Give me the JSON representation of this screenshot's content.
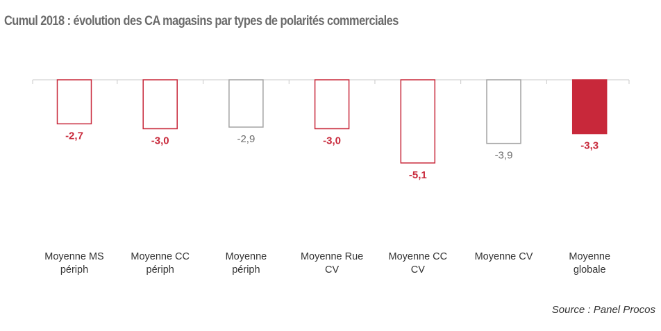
{
  "chart_data": {
    "type": "bar",
    "title": "Cumul 2018 : évolution des CA magasins par types de polarités commerciales",
    "categories": [
      [
        "Moyenne MS",
        "périph"
      ],
      [
        "Moyenne CC",
        "périph"
      ],
      [
        "Moyenne",
        "périph"
      ],
      [
        "Moyenne Rue",
        "CV"
      ],
      [
        "Moyenne CC",
        "CV"
      ],
      [
        "Moyenne CV"
      ],
      [
        "Moyenne",
        "globale"
      ]
    ],
    "values": [
      -2.7,
      -3.0,
      -2.9,
      -3.0,
      -5.1,
      -3.9,
      -3.3
    ],
    "value_labels": [
      "-2,7",
      "-3,0",
      "-2,9",
      "-3,0",
      "-5,1",
      "-3,9",
      "-3,3"
    ],
    "bar_styles": [
      "red-outline",
      "red-outline",
      "grey-outline",
      "red-outline",
      "red-outline",
      "grey-outline",
      "red-filled"
    ],
    "label_styles": [
      "red-bold",
      "red-bold",
      "grey",
      "red-bold",
      "red-bold",
      "grey",
      "red-bold"
    ],
    "colors": {
      "red": "#c8283a",
      "grey": "#a3a3a3",
      "label_grey": "#6b6b6b",
      "axis": "#c8c8c8"
    },
    "ylim": [
      -6,
      0
    ],
    "grid": false,
    "legend": "none",
    "xlabel": "",
    "ylabel": ""
  },
  "source": "Source : Panel Procos"
}
